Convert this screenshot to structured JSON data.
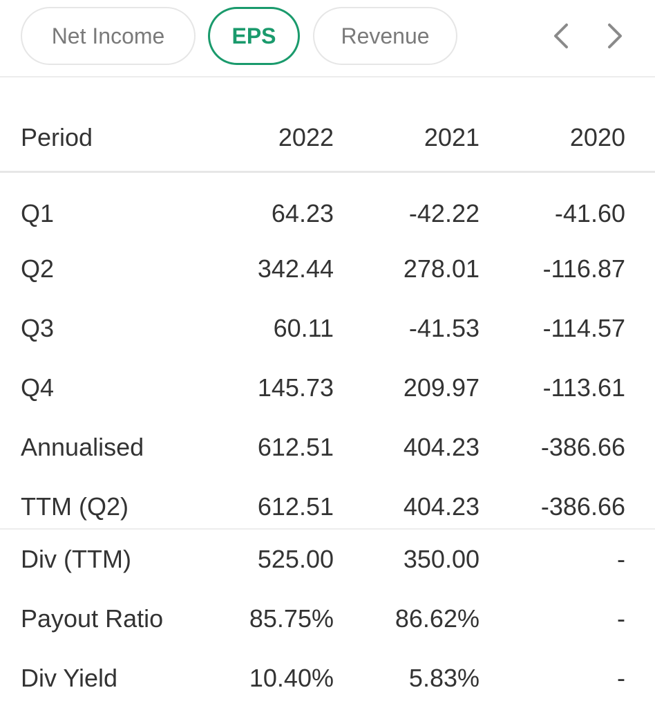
{
  "tabs": [
    {
      "label": "Net Income",
      "active": false
    },
    {
      "label": "EPS",
      "active": true
    },
    {
      "label": "Revenue",
      "active": false
    }
  ],
  "accent_color": "#1a9a6c",
  "nav": {
    "prev_icon": "chevron-left-icon",
    "next_icon": "chevron-right-icon"
  },
  "table": {
    "headers": [
      "Period",
      "2022",
      "2021",
      "2020"
    ],
    "rows": [
      [
        "Q1",
        "64.23",
        "-42.22",
        "-41.60"
      ],
      [
        "Q2",
        "342.44",
        "278.01",
        "-116.87"
      ],
      [
        "Q3",
        "60.11",
        "-41.53",
        "-114.57"
      ],
      [
        "Q4",
        "145.73",
        "209.97",
        "-113.61"
      ],
      [
        "Annualised",
        "612.51",
        "404.23",
        "-386.66"
      ],
      [
        "TTM (Q2)",
        "612.51",
        "404.23",
        "-386.66"
      ]
    ],
    "dividend_rows": [
      [
        "Div (TTM)",
        "525.00",
        "350.00",
        "-"
      ],
      [
        "Payout Ratio",
        "85.75%",
        "86.62%",
        "-"
      ],
      [
        "Div Yield",
        "10.40%",
        "5.83%",
        "-"
      ]
    ]
  }
}
